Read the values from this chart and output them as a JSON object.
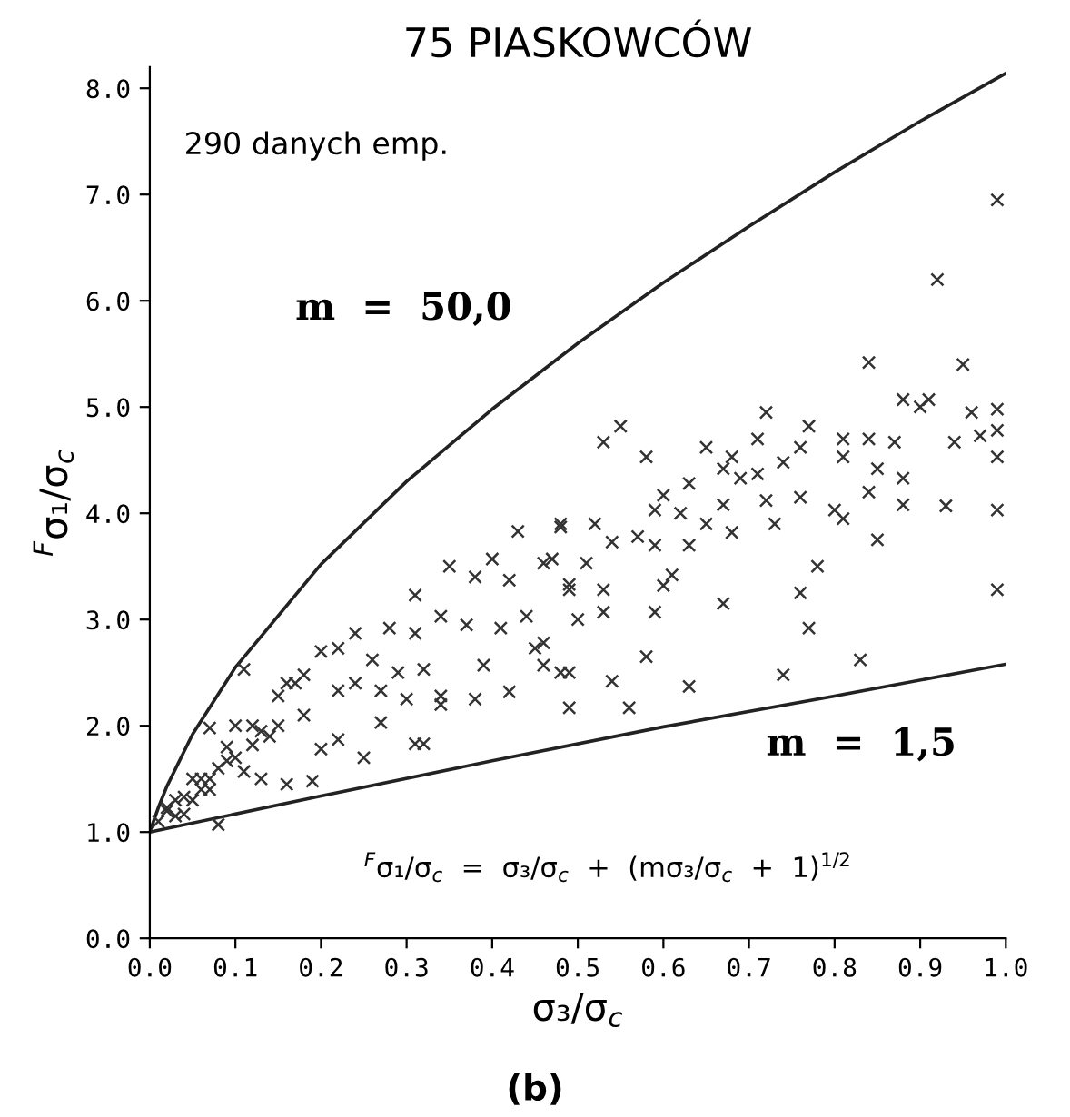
{
  "chart_data": {
    "type": "scatter",
    "title": "75 PIASKOWCÓW",
    "xlabel": "σ₃/σ$_{c}$",
    "ylabel": "$^{F}$σ₁/σ$_{c}$",
    "xlim": [
      0,
      1.0
    ],
    "ylim": [
      0,
      8.2
    ],
    "xticks": [
      {
        "value": 0,
        "label": "0.0"
      },
      0.1,
      0.2,
      0.3,
      0.4,
      0.5,
      0.6,
      0.7,
      0.8,
      0.9,
      {
        "value": 1,
        "label": "1.0"
      }
    ],
    "yticks": [
      {
        "value": 0,
        "label": "0.0"
      },
      {
        "value": 1,
        "label": "1.0"
      },
      {
        "value": 2,
        "label": "2.0"
      },
      {
        "value": 3,
        "label": "3.0"
      },
      {
        "value": 4,
        "label": "4.0"
      },
      {
        "value": 5,
        "label": "5.0"
      },
      {
        "value": 6,
        "label": "6.0"
      },
      {
        "value": 7,
        "label": "7.0"
      },
      {
        "value": 8,
        "label": "8.0"
      }
    ],
    "grid": false,
    "legend": false,
    "marker": "cross",
    "annotations": [
      "290 danych emp.",
      "m  =  50,0",
      "m  =  1,5",
      "$^{F}$σ₁/σ$_{c}$  =  σ₃/σ$_{c}$  +  (mσ₃/σ$_{c}$  +  1)$^{1/2}$",
      "(b)"
    ],
    "series": [
      {
        "color": "#333333",
        "x": [
          0.43,
          0.48,
          0.35,
          0.4,
          0.38,
          0.31,
          0.42,
          0.46,
          0.49,
          0.44,
          0.41,
          0.37,
          0.34,
          0.28,
          0.31,
          0.24,
          0.22,
          0.2,
          0.26,
          0.29,
          0.32,
          0.39,
          0.45,
          0.46,
          0.49,
          0.11,
          0.16,
          0.18,
          0.15,
          0.22,
          0.24,
          0.27,
          0.3,
          0.34,
          0.38,
          0.42,
          0.34,
          0.49,
          0.27,
          0.31,
          0.32,
          0.22,
          0.25,
          0.2,
          0.19,
          0.16,
          0.13,
          0.07,
          0.1,
          0.12,
          0.09,
          0.11,
          0.13,
          0.06,
          0.04,
          0.07,
          0.02,
          0.04,
          0.08,
          0.01,
          0.02,
          0.03,
          0.03,
          0.05,
          0.05,
          0.06,
          0.07,
          0.08,
          0.09,
          0.1,
          0.12,
          0.14,
          0.15,
          0.17,
          0.18,
          0.92,
          0.84,
          0.95,
          0.88,
          0.9,
          0.91,
          0.96,
          0.99,
          0.99,
          0.99,
          0.97,
          0.94,
          0.72,
          0.77,
          0.71,
          0.76,
          0.81,
          0.84,
          0.87,
          0.81,
          0.85,
          0.88,
          0.74,
          0.53,
          0.55,
          0.58,
          0.65,
          0.68,
          0.67,
          0.69,
          0.71,
          0.63,
          0.6,
          0.59,
          0.62,
          0.67,
          0.65,
          0.68,
          0.72,
          0.73,
          0.76,
          0.8,
          0.81,
          0.84,
          0.88,
          0.93,
          0.99,
          0.85,
          0.78,
          0.76,
          0.77,
          0.83,
          0.99,
          0.74,
          0.63,
          0.58,
          0.54,
          0.56,
          0.67,
          0.59,
          0.61,
          0.6,
          0.54,
          0.57,
          0.59,
          0.63,
          0.48,
          0.52,
          0.47,
          0.51,
          0.49,
          0.53,
          0.5,
          0.53,
          0.46,
          0.48,
          0.99
        ],
        "values": [
          3.83,
          3.87,
          3.5,
          3.57,
          3.4,
          3.23,
          3.37,
          3.53,
          3.33,
          3.03,
          2.92,
          2.95,
          3.03,
          2.92,
          2.87,
          2.87,
          2.73,
          2.7,
          2.62,
          2.5,
          2.53,
          2.57,
          2.73,
          2.57,
          2.5,
          2.53,
          2.4,
          2.48,
          2.28,
          2.33,
          2.4,
          2.33,
          2.25,
          2.28,
          2.25,
          2.32,
          2.2,
          2.17,
          2.03,
          1.83,
          1.83,
          1.87,
          1.7,
          1.78,
          1.48,
          1.45,
          1.95,
          1.98,
          2.0,
          1.82,
          1.67,
          1.57,
          1.5,
          1.5,
          1.33,
          1.4,
          1.23,
          1.17,
          1.07,
          1.1,
          1.2,
          1.3,
          1.15,
          1.3,
          1.5,
          1.4,
          1.5,
          1.6,
          1.8,
          1.7,
          2.0,
          1.9,
          2.0,
          2.4,
          2.1,
          6.2,
          5.42,
          5.4,
          5.07,
          5.0,
          5.07,
          4.95,
          4.98,
          4.78,
          4.53,
          4.73,
          4.67,
          4.95,
          4.82,
          4.7,
          4.62,
          4.7,
          4.7,
          4.67,
          4.53,
          4.42,
          4.33,
          4.48,
          4.67,
          4.82,
          4.53,
          4.62,
          4.53,
          4.42,
          4.33,
          4.37,
          4.28,
          4.17,
          4.03,
          4.0,
          4.08,
          3.9,
          3.82,
          4.12,
          3.9,
          4.15,
          4.03,
          3.95,
          4.2,
          4.08,
          4.07,
          4.03,
          3.75,
          3.5,
          3.25,
          2.92,
          2.62,
          3.28,
          2.48,
          2.37,
          2.65,
          2.42,
          2.17,
          3.15,
          3.07,
          3.42,
          3.32,
          3.73,
          3.78,
          3.7,
          3.7,
          3.9,
          3.9,
          3.57,
          3.53,
          3.28,
          3.28,
          3.0,
          3.07,
          2.78,
          2.5,
          6.95
        ]
      },
      {
        "type": "line",
        "color": "#222222",
        "line_style": "solid",
        "marker": "none",
        "x": [
          0,
          0.01,
          0.02,
          0.05,
          0.1,
          0.2,
          0.3,
          0.4,
          0.5,
          0.6,
          0.7,
          0.8,
          0.9,
          1.0
        ],
        "values": [
          1.0,
          1.23,
          1.43,
          1.92,
          2.55,
          3.52,
          4.3,
          4.98,
          5.6,
          6.17,
          6.7,
          7.21,
          7.69,
          8.14
        ]
      },
      {
        "type": "line",
        "color": "#222222",
        "line_style": "solid",
        "marker": "none",
        "x": [
          0,
          0.2,
          0.4,
          0.6,
          0.8,
          1.0
        ],
        "values": [
          1.0,
          1.34,
          1.67,
          1.99,
          2.28,
          2.58
        ]
      }
    ]
  }
}
